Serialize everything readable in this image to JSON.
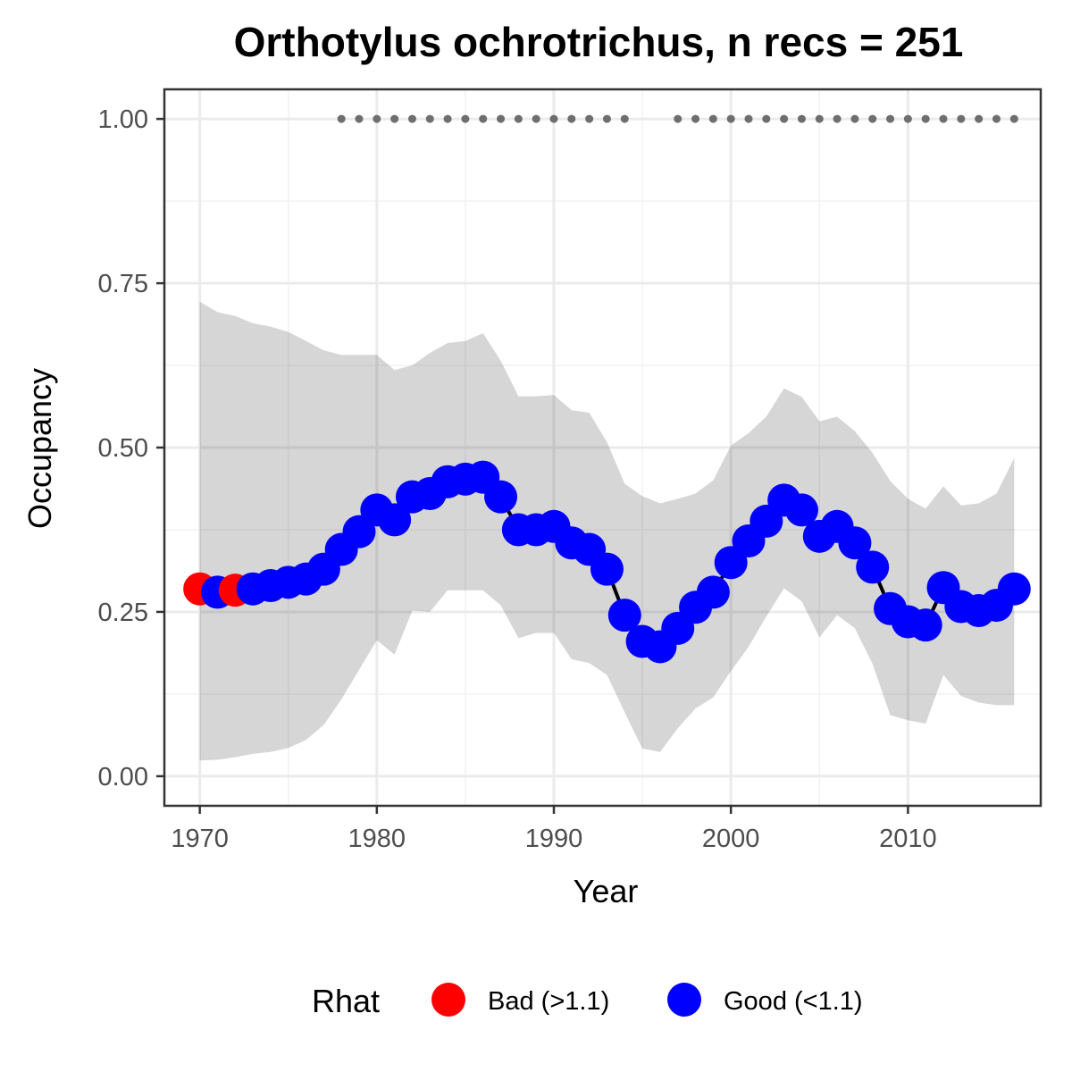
{
  "chart_data": {
    "type": "line",
    "title": "Orthotylus ochrotrichus, n recs = 251",
    "xlabel": "Year",
    "ylabel": "Occupancy",
    "xlim": [
      1968,
      2017.5
    ],
    "ylim": [
      -0.045,
      1.045
    ],
    "x_ticks": [
      1970,
      1980,
      1990,
      2000,
      2010
    ],
    "x_tick_labels": [
      "1970",
      "1980",
      "1990",
      "2000",
      "2010"
    ],
    "y_ticks": [
      0,
      0.25,
      0.5,
      0.75,
      1.0
    ],
    "y_tick_labels": [
      "0.00",
      "0.25",
      "0.50",
      "0.75",
      "1.00"
    ],
    "grid": true,
    "legend": {
      "title": "Rhat",
      "placement": "bottom",
      "entries": [
        {
          "label": "Bad (>1.1)",
          "color": "#ff0000"
        },
        {
          "label": "Good (<1.1)",
          "color": "#0000ff"
        }
      ]
    },
    "colors": {
      "bad": "#ff0000",
      "good": "#0000ff",
      "ribbon": "#d6d6d6",
      "line": "#000000",
      "records": "#6e6e6e"
    },
    "x": [
      1970,
      1971,
      1972,
      1973,
      1974,
      1975,
      1976,
      1977,
      1978,
      1979,
      1980,
      1981,
      1982,
      1983,
      1984,
      1985,
      1986,
      1987,
      1988,
      1989,
      1990,
      1991,
      1992,
      1993,
      1994,
      1995,
      1996,
      1997,
      1998,
      1999,
      2000,
      2001,
      2002,
      2003,
      2004,
      2005,
      2006,
      2007,
      2008,
      2009,
      2010,
      2011,
      2012,
      2013,
      2014,
      2015,
      2016
    ],
    "occupancy": [
      0.285,
      0.28,
      0.283,
      0.285,
      0.29,
      0.295,
      0.3,
      0.315,
      0.345,
      0.372,
      0.405,
      0.39,
      0.425,
      0.43,
      0.448,
      0.452,
      0.455,
      0.425,
      0.375,
      0.375,
      0.38,
      0.355,
      0.345,
      0.315,
      0.245,
      0.205,
      0.197,
      0.225,
      0.257,
      0.28,
      0.325,
      0.358,
      0.388,
      0.42,
      0.405,
      0.365,
      0.38,
      0.355,
      0.318,
      0.255,
      0.235,
      0.23,
      0.287,
      0.258,
      0.252,
      0.26,
      0.285
    ],
    "rhat": [
      "Bad",
      "Good",
      "Bad",
      "Good",
      "Good",
      "Good",
      "Good",
      "Good",
      "Good",
      "Good",
      "Good",
      "Good",
      "Good",
      "Good",
      "Good",
      "Good",
      "Good",
      "Good",
      "Good",
      "Good",
      "Good",
      "Good",
      "Good",
      "Good",
      "Good",
      "Good",
      "Good",
      "Good",
      "Good",
      "Good",
      "Good",
      "Good",
      "Good",
      "Good",
      "Good",
      "Good",
      "Good",
      "Good",
      "Good",
      "Good",
      "Good",
      "Good",
      "Good",
      "Good",
      "Good",
      "Good",
      "Good"
    ],
    "upper": [
      0.722,
      0.706,
      0.7,
      0.689,
      0.684,
      0.676,
      0.662,
      0.648,
      0.641,
      0.641,
      0.641,
      0.618,
      0.625,
      0.644,
      0.659,
      0.662,
      0.674,
      0.632,
      0.578,
      0.578,
      0.58,
      0.557,
      0.553,
      0.508,
      0.445,
      0.426,
      0.415,
      0.422,
      0.43,
      0.45,
      0.503,
      0.522,
      0.547,
      0.59,
      0.577,
      0.54,
      0.547,
      0.525,
      0.492,
      0.449,
      0.422,
      0.407,
      0.441,
      0.412,
      0.415,
      0.43,
      0.484
    ],
    "lower": [
      0.024,
      0.025,
      0.029,
      0.034,
      0.037,
      0.043,
      0.055,
      0.078,
      0.117,
      0.162,
      0.207,
      0.185,
      0.252,
      0.25,
      0.283,
      0.283,
      0.283,
      0.26,
      0.21,
      0.218,
      0.218,
      0.178,
      0.172,
      0.154,
      0.097,
      0.042,
      0.037,
      0.073,
      0.103,
      0.12,
      0.16,
      0.197,
      0.243,
      0.286,
      0.266,
      0.211,
      0.245,
      0.225,
      0.171,
      0.093,
      0.085,
      0.08,
      0.154,
      0.122,
      0.112,
      0.108,
      0.108
    ],
    "record_years": [
      1978,
      1979,
      1980,
      1981,
      1982,
      1983,
      1984,
      1985,
      1986,
      1987,
      1988,
      1989,
      1990,
      1991,
      1992,
      1993,
      1994,
      1997,
      1998,
      1999,
      2000,
      2001,
      2002,
      2003,
      2004,
      2005,
      2006,
      2007,
      2008,
      2009,
      2010,
      2011,
      2012,
      2013,
      2014,
      2015,
      2016
    ],
    "record_value": 1.0
  }
}
